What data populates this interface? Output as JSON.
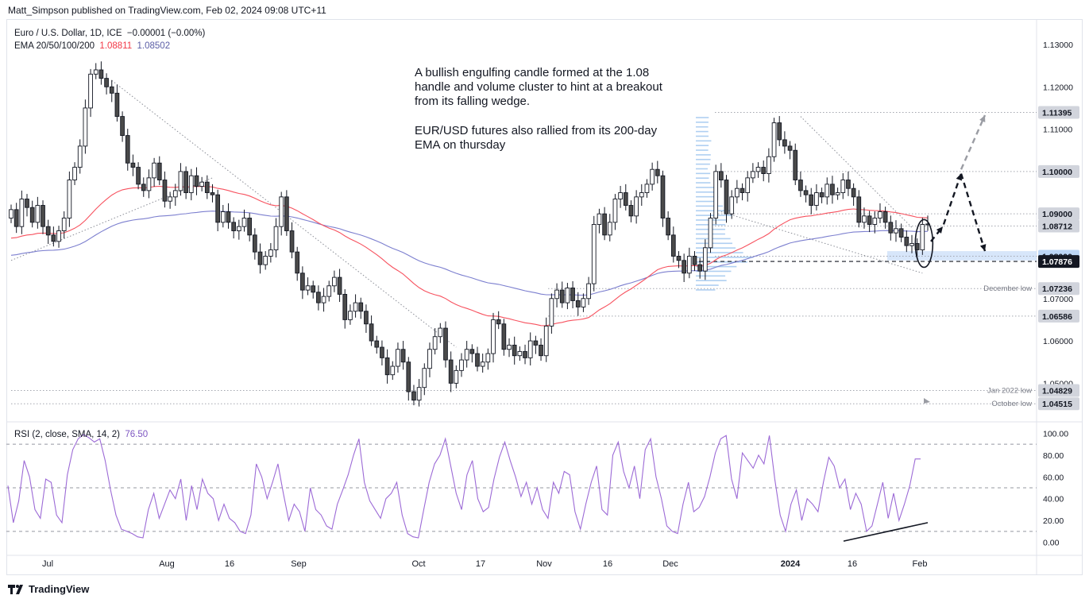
{
  "header": {
    "publisher": "Matt_Simpson published on TradingView.com, Feb 02, 2024 09:08 UTC+11"
  },
  "legend": {
    "symbol": "Euro / U.S. Dollar, 1D, ICE",
    "change": "−0.00001 (−0.00%)",
    "ema_label": "EMA 20/50/100/200",
    "ema_value_1": "1.08811",
    "ema_value_2": "1.08502",
    "rsi_label": "RSI (2, close, SMA, 14, 2)",
    "rsi_value": "76.50"
  },
  "annotations": {
    "text_1": "A bullish engulfing candle formed at the 1.08\nhandle and volume cluster to hint at a breakout\nfrom its falling wedge.",
    "text_2": "EUR/USD futures also rallied from its 200-day\nEMA on thursday"
  },
  "footer": {
    "brand": "TradingView"
  },
  "colors": {
    "up": "#131722",
    "down": "#131722",
    "up_fill": "#ffffff",
    "down_fill": "#4a4a4a",
    "ema_red": "#f7525f",
    "ema_blue": "#7c7fcf",
    "rsi": "#9c6ad6",
    "volume_profile": "#6ea8e6"
  },
  "chart_data": [
    {
      "type": "candlestick",
      "price_axis": {
        "ticks": [
          "1.13000",
          "1.12000",
          "1.11000",
          "1.10000",
          "1.09000",
          "1.08000",
          "1.07000",
          "1.06000",
          "1.05000"
        ],
        "ylim": [
          1.042,
          1.133
        ]
      },
      "time_axis": [
        "Jul",
        "Aug",
        "16",
        "Sep",
        "Oct",
        "17",
        "Nov",
        "16",
        "Dec",
        "2024",
        "16",
        "Feb"
      ],
      "price_labels": [
        {
          "value": 1.11395,
          "text": "1.11395",
          "note": "",
          "style": "grey"
        },
        {
          "value": 1.1,
          "text": "1.10000",
          "note": "",
          "style": "grey"
        },
        {
          "value": 1.09,
          "text": "1.09000",
          "note": "",
          "style": "grey"
        },
        {
          "value": 1.08712,
          "text": "1.08712",
          "note": "",
          "style": "grey"
        },
        {
          "value": 1.08,
          "text": "1.08000",
          "note": "",
          "style": "highlight"
        },
        {
          "value": 1.07876,
          "text": "1.07876",
          "note": "",
          "style": "dark"
        },
        {
          "value": 1.07236,
          "text": "1.07236",
          "note": "December low",
          "style": "grey"
        },
        {
          "value": 1.06586,
          "text": "1.06586",
          "note": "",
          "style": "grey"
        },
        {
          "value": 1.04829,
          "text": "1.04829",
          "note": "Jan 2022 low",
          "style": "grey"
        },
        {
          "value": 1.04515,
          "text": "1.04515",
          "note": "October low",
          "style": "grey"
        }
      ],
      "closes": [
        1.091,
        1.087,
        1.0935,
        1.0915,
        1.088,
        1.092,
        1.087,
        1.085,
        1.0835,
        1.086,
        1.089,
        1.098,
        1.101,
        1.106,
        1.115,
        1.123,
        1.124,
        1.122,
        1.12,
        1.1185,
        1.113,
        1.1085,
        1.102,
        1.101,
        1.097,
        1.0955,
        1.0985,
        1.102,
        1.098,
        1.093,
        1.094,
        1.0955,
        1.1,
        1.095,
        1.099,
        1.0965,
        1.0975,
        1.095,
        1.0945,
        1.088,
        1.0905,
        1.088,
        1.086,
        1.087,
        1.089,
        1.085,
        1.081,
        1.078,
        1.08,
        1.0815,
        1.087,
        1.094,
        1.086,
        1.081,
        1.076,
        1.072,
        1.073,
        1.0715,
        1.069,
        1.0705,
        1.073,
        1.075,
        1.071,
        1.065,
        1.067,
        1.069,
        1.067,
        1.064,
        1.06,
        1.0585,
        1.056,
        1.052,
        1.054,
        1.058,
        1.055,
        1.048,
        1.046,
        1.049,
        1.0535,
        1.058,
        1.061,
        1.063,
        1.0555,
        1.05,
        1.053,
        1.0555,
        1.058,
        1.057,
        1.054,
        1.055,
        1.057,
        1.065,
        1.064,
        1.058,
        1.059,
        1.0565,
        1.0575,
        1.056,
        1.06,
        1.059,
        1.0565,
        1.0635,
        1.07,
        1.072,
        1.069,
        1.0725,
        1.0695,
        1.068,
        1.07,
        1.0735,
        1.0875,
        1.09,
        1.085,
        1.088,
        1.0935,
        1.095,
        1.092,
        1.0895,
        1.094,
        1.095,
        1.097,
        1.1005,
        1.099,
        1.089,
        1.085,
        1.08,
        1.079,
        1.076,
        1.08,
        1.078,
        1.0765,
        1.082,
        1.089,
        1.1,
        1.098,
        1.09,
        1.094,
        1.096,
        1.095,
        1.0985,
        1.1,
        1.101,
        1.0995,
        1.1035,
        1.1115,
        1.1075,
        1.106,
        1.105,
        1.098,
        1.0955,
        1.0945,
        1.092,
        1.095,
        1.094,
        1.097,
        1.0945,
        1.095,
        1.098,
        1.096,
        1.094,
        1.088,
        1.0895,
        1.0875,
        1.089,
        1.0905,
        1.088,
        1.0855,
        1.0865,
        1.0845,
        1.0825,
        1.083,
        1.0815,
        1.0875,
        1.0876
      ],
      "rsi": {
        "ticks": [
          "100.00",
          "80.00",
          "60.00",
          "40.00",
          "20.00",
          "0.00"
        ],
        "ylim": [
          -4,
          104
        ],
        "levels": [
          90,
          50,
          10
        ],
        "values": [
          52,
          18,
          38,
          75,
          60,
          30,
          22,
          58,
          55,
          25,
          18,
          62,
          85,
          95,
          99,
          96,
          92,
          95,
          75,
          48,
          25,
          12,
          10,
          8,
          5,
          4,
          30,
          45,
          22,
          35,
          48,
          40,
          58,
          20,
          52,
          30,
          58,
          45,
          40,
          20,
          35,
          22,
          18,
          10,
          8,
          25,
          72,
          60,
          40,
          55,
          72,
          45,
          20,
          35,
          28,
          10,
          50,
          30,
          25,
          15,
          12,
          35,
          48,
          62,
          80,
          95,
          55,
          38,
          30,
          22,
          40,
          45,
          55,
          25,
          8,
          5,
          4,
          30,
          55,
          72,
          80,
          95,
          70,
          45,
          30,
          62,
          75,
          40,
          28,
          32,
          58,
          78,
          92,
          75,
          60,
          42,
          55,
          35,
          50,
          30,
          22,
          55,
          45,
          65,
          62,
          28,
          12,
          35,
          55,
          70,
          30,
          25,
          80,
          92,
          65,
          50,
          70,
          40,
          85,
          95,
          60,
          40,
          15,
          10,
          8,
          35,
          55,
          28,
          32,
          42,
          60,
          82,
          95,
          98,
          58,
          40,
          82,
          75,
          68,
          80,
          72,
          98,
          58,
          25,
          10,
          35,
          48,
          20,
          40,
          35,
          28,
          55,
          78,
          70,
          50,
          58,
          30,
          45,
          35,
          10,
          15,
          35,
          55,
          22,
          45,
          20,
          35,
          52,
          76.5,
          76.5
        ]
      },
      "annotations": [
        "bullish engulfing candle circled",
        "falling wedge trendlines",
        "projected move up toward 1.1000",
        "projected move down toward 1.0800",
        "projected extension toward 1.11395",
        "rising RSI trendline"
      ]
    }
  ]
}
